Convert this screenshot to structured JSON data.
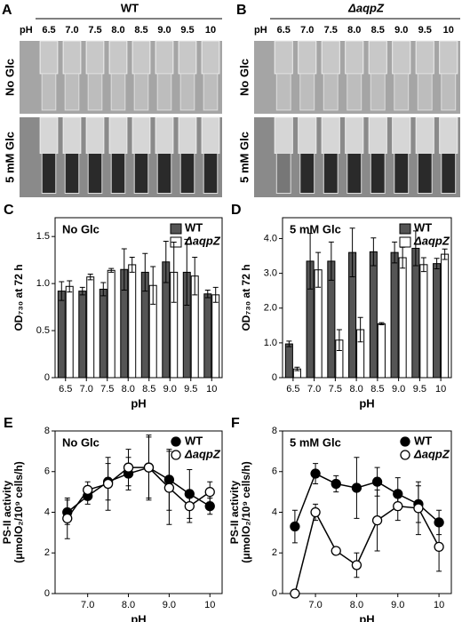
{
  "photo_panels": [
    {
      "panel": "A",
      "title": "WT",
      "ph_label": "pH",
      "ph": [
        "6.5",
        "7.0",
        "7.5",
        "8.0",
        "8.5",
        "9.0",
        "9.5",
        "10"
      ],
      "rows": [
        "No Glc",
        "5 mM Glc"
      ]
    },
    {
      "panel": "B",
      "title": "ΔaqpZ",
      "ph_label": "pH",
      "ph": [
        "6.5",
        "7.0",
        "7.5",
        "8.0",
        "8.5",
        "9.0",
        "9.5",
        "10"
      ],
      "rows": [
        "No Glc",
        "5 mM Glc"
      ]
    }
  ],
  "chart_data": [
    {
      "type": "bar",
      "panel": "C",
      "annotation": "No Glc",
      "ylabel": [
        "OD₇₃₀ at 72 h"
      ],
      "xlabel": "pH",
      "categories": [
        "6.5",
        "7.0",
        "7.5",
        "8.0",
        "8.5",
        "9.0",
        "9.5",
        "10"
      ],
      "series": [
        {
          "name": "WT",
          "color": "#555555",
          "values": [
            0.92,
            0.92,
            0.94,
            1.15,
            1.12,
            1.23,
            1.12,
            0.89
          ],
          "errors": [
            0.1,
            0.04,
            0.07,
            0.22,
            0.2,
            0.22,
            0.35,
            0.04
          ]
        },
        {
          "name": "ΔaqpZ",
          "color": "#ffffff",
          "values": [
            0.97,
            1.07,
            1.14,
            1.2,
            0.98,
            1.12,
            1.08,
            0.88
          ],
          "errors": [
            0.06,
            0.03,
            0.02,
            0.08,
            0.2,
            0.32,
            0.2,
            0.08
          ]
        }
      ],
      "ylim": [
        0,
        1.7
      ],
      "yticks": [
        0,
        0.5,
        {
          "value": 1,
          "label": "1.0"
        },
        1.5
      ]
    },
    {
      "type": "bar",
      "panel": "D",
      "annotation": "5 mM Glc",
      "ylabel": [
        "OD₇₃₀ at 72 h"
      ],
      "xlabel": "pH",
      "categories": [
        "6.5",
        "7.0",
        "7.5",
        "8.0",
        "8.5",
        "9.0",
        "9.5",
        "10"
      ],
      "series": [
        {
          "name": "WT",
          "color": "#555555",
          "values": [
            0.97,
            3.35,
            3.35,
            3.6,
            3.62,
            3.6,
            3.72,
            3.28
          ],
          "errors": [
            0.08,
            0.8,
            0.55,
            0.7,
            0.4,
            0.3,
            0.5,
            0.15
          ]
        },
        {
          "name": "ΔaqpZ",
          "color": "#ffffff",
          "values": [
            0.25,
            3.1,
            1.08,
            1.38,
            1.55,
            3.45,
            3.25,
            3.55
          ],
          "errors": [
            0.05,
            0.5,
            0.3,
            0.35,
            0.03,
            0.3,
            0.2,
            0.15
          ]
        }
      ],
      "ylim": [
        0,
        4.6
      ],
      "yticks": [
        0,
        {
          "value": 1,
          "label": "1.0"
        },
        {
          "value": 2,
          "label": "2.0"
        },
        {
          "value": 3,
          "label": "3.0"
        },
        {
          "value": 4,
          "label": "4.0"
        }
      ]
    },
    {
      "type": "line",
      "panel": "E",
      "annotation": "No Glc",
      "ylabel": [
        "PS-II activity",
        "(μmolO₂/10⁹ cells/h)"
      ],
      "xlabel": "pH",
      "x": [
        6.5,
        7,
        7.5,
        8,
        8.5,
        9,
        9.5,
        10
      ],
      "series": [
        {
          "name": "WT",
          "color": "#000000",
          "values": [
            4.0,
            4.8,
            5.5,
            5.9,
            6.2,
            5.6,
            4.9,
            4.3
          ],
          "errors": [
            0.6,
            0.4,
            0.9,
            0.8,
            1.5,
            1.5,
            1.2,
            0.4
          ]
        },
        {
          "name": "ΔaqpZ",
          "color": "#ffffff",
          "values": [
            3.7,
            5.1,
            5.4,
            6.2,
            6.2,
            5.2,
            4.3,
            5.0
          ],
          "errors": [
            1.0,
            0.4,
            1.3,
            0.9,
            1.6,
            1.8,
            0.8,
            0.5
          ]
        }
      ],
      "xlim": [
        6.2,
        10.3
      ],
      "xticks": [
        {
          "value": 7,
          "label": "7.0"
        },
        {
          "value": 8,
          "label": "8.0"
        },
        {
          "value": 9,
          "label": "9.0"
        },
        10
      ],
      "ylim": [
        0,
        8
      ],
      "yticks": [
        0,
        2,
        4,
        6,
        8
      ]
    },
    {
      "type": "line",
      "panel": "F",
      "annotation": "5 mM Glc",
      "ylabel": [
        "PS-II activity",
        "(μmolO₂/10⁹ cells/h)"
      ],
      "xlabel": "pH",
      "x": [
        6.5,
        7,
        7.5,
        8,
        8.5,
        9,
        9.5,
        10
      ],
      "series": [
        {
          "name": "WT",
          "color": "#000000",
          "values": [
            3.3,
            5.9,
            5.4,
            5.2,
            5.5,
            4.9,
            4.4,
            3.5
          ],
          "errors": [
            0.8,
            0.5,
            0.4,
            1.5,
            0.7,
            0.8,
            0.9,
            0.6
          ]
        },
        {
          "name": "ΔaqpZ",
          "color": "#ffffff",
          "values": [
            0,
            4.0,
            2.1,
            1.4,
            3.6,
            4.3,
            4.2,
            2.3
          ],
          "errors": [
            0,
            0.4,
            0.1,
            0.6,
            1.5,
            0.7,
            1.3,
            1.2
          ]
        }
      ],
      "xlim": [
        6.2,
        10.3
      ],
      "xticks": [
        {
          "value": 7,
          "label": "7.0"
        },
        {
          "value": 8,
          "label": "8.0"
        },
        {
          "value": 9,
          "label": "9.0"
        },
        10
      ],
      "ylim": [
        0,
        8
      ],
      "yticks": [
        0,
        2,
        4,
        6,
        8
      ]
    }
  ]
}
